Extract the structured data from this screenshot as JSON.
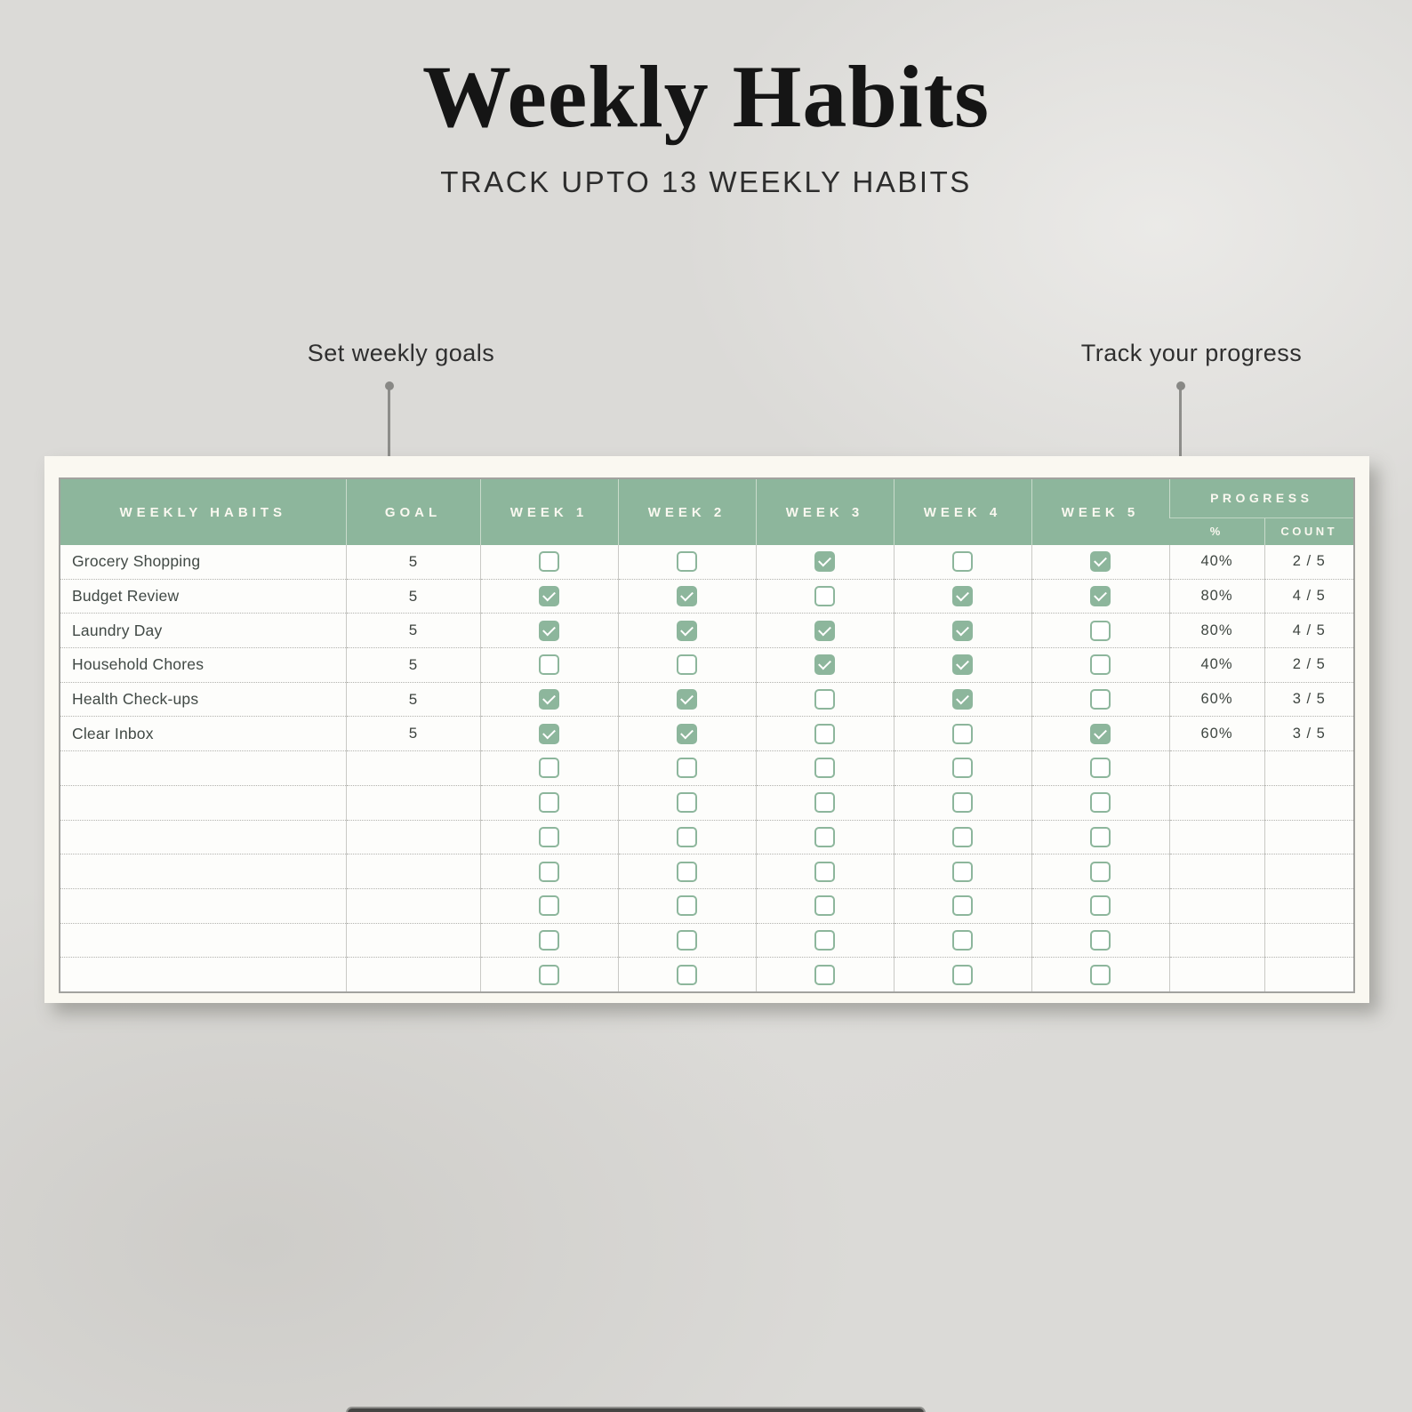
{
  "page": {
    "title": "Weekly Habits",
    "subtitle": "TRACK UPTO 13 WEEKLY HABITS"
  },
  "annotations": {
    "goal_label": "Set weekly goals",
    "progress_label": "Track your progress"
  },
  "table": {
    "headers": {
      "habit": "WEEKLY HABITS",
      "goal": "GOAL",
      "weeks": [
        "WEEK 1",
        "WEEK 2",
        "WEEK 3",
        "WEEK 4",
        "WEEK 5"
      ],
      "progress": "PROGRESS",
      "percent": "%",
      "count": "COUNT"
    },
    "rows": [
      {
        "habit": "Grocery Shopping",
        "goal": "5",
        "weeks": [
          false,
          false,
          true,
          false,
          true
        ],
        "percent": "40%",
        "count": "2 / 5"
      },
      {
        "habit": "Budget Review",
        "goal": "5",
        "weeks": [
          true,
          true,
          false,
          true,
          true
        ],
        "percent": "80%",
        "count": "4 / 5"
      },
      {
        "habit": "Laundry Day",
        "goal": "5",
        "weeks": [
          true,
          true,
          true,
          true,
          false
        ],
        "percent": "80%",
        "count": "4 / 5"
      },
      {
        "habit": "Household Chores",
        "goal": "5",
        "weeks": [
          false,
          false,
          true,
          true,
          false
        ],
        "percent": "40%",
        "count": "2 / 5"
      },
      {
        "habit": "Health Check-ups",
        "goal": "5",
        "weeks": [
          true,
          true,
          false,
          true,
          false
        ],
        "percent": "60%",
        "count": "3 / 5"
      },
      {
        "habit": "Clear Inbox",
        "goal": "5",
        "weeks": [
          true,
          true,
          false,
          false,
          true
        ],
        "percent": "60%",
        "count": "3 / 5"
      }
    ],
    "empty_row_count": 7
  },
  "icons": {
    "checked_checkbox": "check-mark",
    "unchecked_checkbox": "empty-box"
  },
  "colors": {
    "accent_green": "#8db69c",
    "header_text": "#faf8f0",
    "panel_cream": "#faf8f1",
    "page_background": "#dbdad7",
    "cell_text": "#414945",
    "connector_gray": "#8d8d8a",
    "bottom_bar": "#454543"
  }
}
